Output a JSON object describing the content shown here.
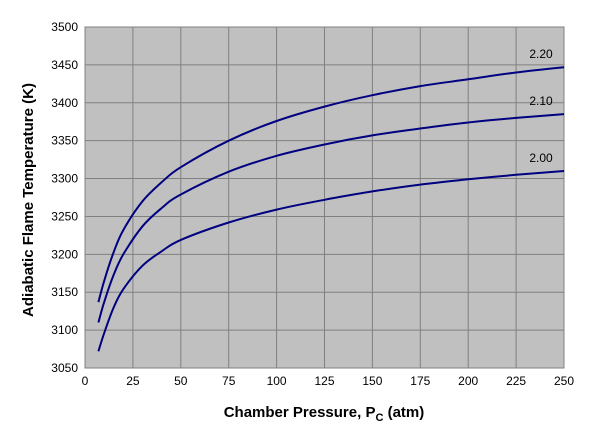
{
  "chart_data": {
    "type": "line",
    "title": "",
    "xlabel": "Chamber Pressure, P",
    "xlabel_sub": "C",
    "xlabel_suffix": " (atm)",
    "ylabel": "Adiabatic Flame Temperature (K)",
    "xlim": [
      0,
      250
    ],
    "ylim": [
      3050,
      3500
    ],
    "x_ticks": [
      "0",
      "25",
      "50",
      "75",
      "100",
      "125",
      "150",
      "175",
      "200",
      "225",
      "250"
    ],
    "y_ticks": [
      "3050",
      "3100",
      "3150",
      "3200",
      "3250",
      "3300",
      "3350",
      "3400",
      "3450",
      "3500"
    ],
    "grid": true,
    "legend": "none",
    "colors": {
      "plot_bg": "#c0c0c0",
      "line": "#000080",
      "grid": "#808080"
    },
    "series": [
      {
        "name": "2.20",
        "x": [
          7,
          10,
          15,
          20,
          30,
          40,
          50,
          75,
          100,
          125,
          150,
          175,
          200,
          225,
          250
        ],
        "values": [
          3137,
          3165,
          3203,
          3232,
          3270,
          3295,
          3315,
          3350,
          3376,
          3395,
          3410,
          3422,
          3431,
          3440,
          3447
        ]
      },
      {
        "name": "2.10",
        "x": [
          7,
          10,
          15,
          20,
          30,
          40,
          50,
          75,
          100,
          125,
          150,
          175,
          200,
          225,
          250
        ],
        "values": [
          3110,
          3137,
          3173,
          3200,
          3237,
          3261,
          3279,
          3309,
          3330,
          3345,
          3357,
          3366,
          3374,
          3380,
          3385
        ]
      },
      {
        "name": "2.00",
        "x": [
          7,
          10,
          15,
          20,
          30,
          40,
          50,
          75,
          100,
          125,
          150,
          175,
          200,
          225,
          250
        ],
        "values": [
          3072,
          3096,
          3130,
          3154,
          3185,
          3204,
          3219,
          3242,
          3259,
          3272,
          3283,
          3292,
          3299,
          3305,
          3310
        ]
      }
    ]
  }
}
